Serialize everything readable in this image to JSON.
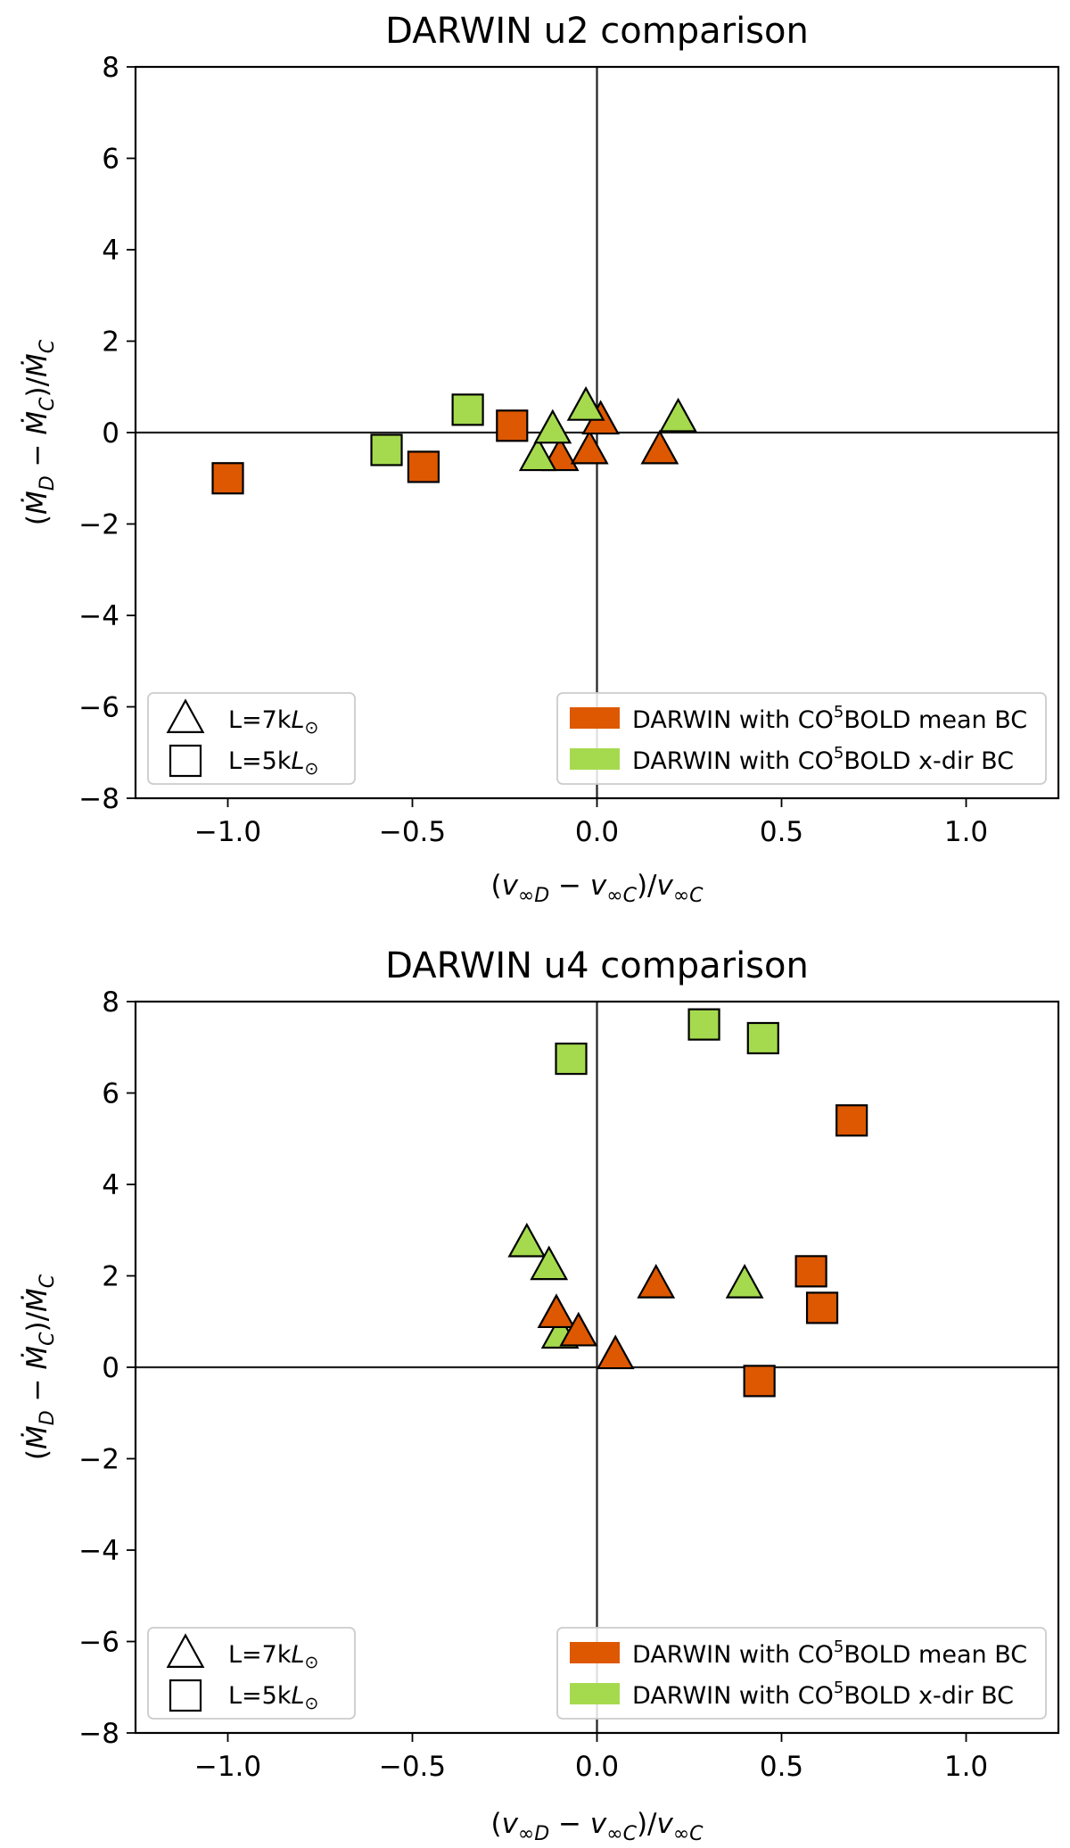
{
  "chart_data": [
    {
      "type": "scatter",
      "title": "DARWIN u2 comparison",
      "xlabel": "(v∞D − v∞C)/v∞C",
      "ylabel": "(ṀD − ṀC)/ṀC",
      "xlim": [
        -1.25,
        1.25
      ],
      "ylim": [
        -8,
        8
      ],
      "xticks": [
        -1.0,
        -0.5,
        0.0,
        0.5,
        1.0
      ],
      "xtick_labels": [
        "−1.0",
        "−0.5",
        "0.0",
        "0.5",
        "1.0"
      ],
      "yticks": [
        -8,
        -6,
        -4,
        -2,
        0,
        2,
        4,
        6,
        8
      ],
      "ytick_labels": [
        "−8",
        "−6",
        "−4",
        "−2",
        "0",
        "2",
        "4",
        "6",
        "8"
      ],
      "colors": {
        "mean": "#dd5800",
        "xdir": "#a6da4e"
      },
      "legend_shapes": {
        "position": "lower-left",
        "entries": [
          {
            "marker": "triangle",
            "label_base": "L=7k",
            "label_sym": "L",
            "label_sub": "⊙"
          },
          {
            "marker": "square",
            "label_base": "L=5k",
            "label_sym": "L",
            "label_sub": "⊙"
          }
        ]
      },
      "legend_colors": {
        "position": "lower-right",
        "entries": [
          {
            "key": "mean",
            "pre": "DARWIN with CO",
            "sup": "5",
            "post": "BOLD mean BC"
          },
          {
            "key": "xdir",
            "pre": "DARWIN with CO",
            "sup": "5",
            "post": "BOLD x-dir BC"
          }
        ]
      },
      "series": [
        {
          "name": "mean BC, L=5kL⊙",
          "color_key": "mean",
          "marker": "square",
          "points": [
            [
              -1.0,
              -1.0
            ],
            [
              -0.47,
              -0.75
            ],
            [
              -0.23,
              0.15
            ]
          ]
        },
        {
          "name": "mean BC, L=7kL⊙",
          "color_key": "mean",
          "marker": "triangle",
          "points": [
            [
              -0.1,
              -0.55
            ],
            [
              -0.02,
              -0.4
            ],
            [
              0.01,
              0.25
            ],
            [
              0.17,
              -0.4
            ]
          ]
        },
        {
          "name": "x-dir BC, L=5kL⊙",
          "color_key": "xdir",
          "marker": "square",
          "points": [
            [
              -0.57,
              -0.38
            ],
            [
              -0.35,
              0.5
            ]
          ]
        },
        {
          "name": "x-dir BC, L=7kL⊙",
          "color_key": "xdir",
          "marker": "triangle",
          "points": [
            [
              -0.16,
              -0.55
            ],
            [
              -0.12,
              0.05
            ],
            [
              -0.03,
              0.55
            ],
            [
              0.22,
              0.3
            ]
          ]
        }
      ]
    },
    {
      "type": "scatter",
      "title": "DARWIN u4 comparison",
      "xlabel": "(v∞D − v∞C)/v∞C",
      "ylabel": "(ṀD − ṀC)/ṀC",
      "xlim": [
        -1.25,
        1.25
      ],
      "ylim": [
        -8,
        8
      ],
      "xticks": [
        -1.0,
        -0.5,
        0.0,
        0.5,
        1.0
      ],
      "xtick_labels": [
        "−1.0",
        "−0.5",
        "0.0",
        "0.5",
        "1.0"
      ],
      "yticks": [
        -8,
        -6,
        -4,
        -2,
        0,
        2,
        4,
        6,
        8
      ],
      "ytick_labels": [
        "−8",
        "−6",
        "−4",
        "−2",
        "0",
        "2",
        "4",
        "6",
        "8"
      ],
      "colors": {
        "mean": "#dd5800",
        "xdir": "#a6da4e"
      },
      "legend_shapes": {
        "position": "lower-left",
        "entries": [
          {
            "marker": "triangle",
            "label_base": "L=7k",
            "label_sym": "L",
            "label_sub": "⊙"
          },
          {
            "marker": "square",
            "label_base": "L=5k",
            "label_sym": "L",
            "label_sub": "⊙"
          }
        ]
      },
      "legend_colors": {
        "position": "lower-right",
        "entries": [
          {
            "key": "mean",
            "pre": "DARWIN with CO",
            "sup": "5",
            "post": "BOLD mean BC"
          },
          {
            "key": "xdir",
            "pre": "DARWIN with CO",
            "sup": "5",
            "post": "BOLD x-dir BC"
          }
        ]
      },
      "series": [
        {
          "name": "x-dir BC, L=5kL⊙",
          "color_key": "xdir",
          "marker": "square",
          "points": [
            [
              -0.07,
              6.75
            ],
            [
              0.29,
              7.5
            ],
            [
              0.45,
              7.2
            ]
          ]
        },
        {
          "name": "x-dir BC, L=7kL⊙",
          "color_key": "xdir",
          "marker": "triangle",
          "points": [
            [
              -0.19,
              2.7
            ],
            [
              -0.13,
              2.2
            ],
            [
              -0.1,
              0.7
            ],
            [
              0.4,
              1.8
            ]
          ]
        },
        {
          "name": "mean BC, L=5kL⊙",
          "color_key": "mean",
          "marker": "square",
          "points": [
            [
              0.69,
              5.4
            ],
            [
              0.58,
              2.1
            ],
            [
              0.61,
              1.3
            ],
            [
              0.44,
              -0.3
            ]
          ]
        },
        {
          "name": "mean BC, L=7kL⊙",
          "color_key": "mean",
          "marker": "triangle",
          "points": [
            [
              -0.11,
              1.15
            ],
            [
              -0.05,
              0.75
            ],
            [
              0.05,
              0.25
            ],
            [
              0.16,
              1.8
            ]
          ]
        }
      ]
    }
  ]
}
